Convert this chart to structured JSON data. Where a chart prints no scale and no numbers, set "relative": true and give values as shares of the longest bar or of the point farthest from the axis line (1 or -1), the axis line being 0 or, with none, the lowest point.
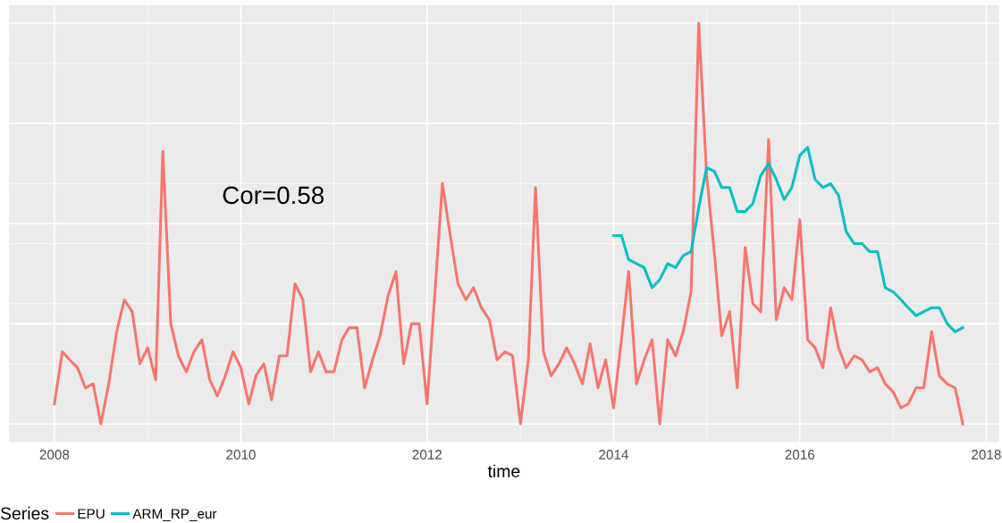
{
  "chart_data": {
    "type": "line",
    "relative": true,
    "xlabel": "time",
    "legend_title": "Series",
    "legend": "bottom",
    "grid": true,
    "annotations": [
      "Cor=0.58"
    ],
    "xlim": [
      "2007-07-07",
      "2018-02-20"
    ],
    "xticks": [
      "2008",
      "2010",
      "2012",
      "2014",
      "2016",
      "2018"
    ],
    "series": [
      {
        "name": "EPU",
        "color": "#f8766d",
        "x": [
          "2008-01",
          "2008-02",
          "2008-03",
          "2008-04",
          "2008-05",
          "2008-06",
          "2008-07",
          "2008-08",
          "2008-09",
          "2008-10",
          "2008-11",
          "2008-12",
          "2009-01",
          "2009-02",
          "2009-03",
          "2009-04",
          "2009-05",
          "2009-06",
          "2009-07",
          "2009-08",
          "2009-09",
          "2009-10",
          "2009-11",
          "2009-12",
          "2010-01",
          "2010-02",
          "2010-03",
          "2010-04",
          "2010-05",
          "2010-06",
          "2010-07",
          "2010-08",
          "2010-09",
          "2010-10",
          "2010-11",
          "2010-12",
          "2011-01",
          "2011-02",
          "2011-03",
          "2011-04",
          "2011-05",
          "2011-06",
          "2011-07",
          "2011-08",
          "2011-09",
          "2011-10",
          "2011-11",
          "2011-12",
          "2012-01",
          "2012-02",
          "2012-03",
          "2012-04",
          "2012-05",
          "2012-06",
          "2012-07",
          "2012-08",
          "2012-09",
          "2012-10",
          "2012-11",
          "2012-12",
          "2013-01",
          "2013-02",
          "2013-03",
          "2013-04",
          "2013-05",
          "2013-06",
          "2013-07",
          "2013-08",
          "2013-09",
          "2013-10",
          "2013-11",
          "2013-12",
          "2014-01",
          "2014-02",
          "2014-03",
          "2014-04",
          "2014-05",
          "2014-06",
          "2014-07",
          "2014-08",
          "2014-09",
          "2014-10",
          "2014-11",
          "2014-12",
          "2015-01",
          "2015-02",
          "2015-03",
          "2015-04",
          "2015-05",
          "2015-06",
          "2015-07",
          "2015-08",
          "2015-09",
          "2015-10",
          "2015-11",
          "2015-12",
          "2016-01",
          "2016-02",
          "2016-03",
          "2016-04",
          "2016-05",
          "2016-06",
          "2016-07",
          "2016-08",
          "2016-09",
          "2016-10",
          "2016-11",
          "2016-12",
          "2017-01",
          "2017-02",
          "2017-03",
          "2017-04",
          "2017-05",
          "2017-06",
          "2017-07",
          "2017-08",
          "2017-09",
          "2017-10"
        ],
        "values": [
          0.05,
          0.18,
          0.16,
          0.14,
          0.09,
          0.1,
          0,
          0.1,
          0.23,
          0.31,
          0.28,
          0.15,
          0.19,
          0.11,
          0.68,
          0.25,
          0.17,
          0.13,
          0.18,
          0.21,
          0.11,
          0.07,
          0.12,
          0.18,
          0.14,
          0.05,
          0.12,
          0.15,
          0.06,
          0.17,
          0.17,
          0.35,
          0.31,
          0.13,
          0.18,
          0.13,
          0.13,
          0.21,
          0.24,
          0.24,
          0.09,
          0.16,
          0.22,
          0.32,
          0.38,
          0.15,
          0.25,
          0.25,
          0.05,
          0.33,
          0.6,
          0.47,
          0.35,
          0.31,
          0.34,
          0.29,
          0.26,
          0.16,
          0.18,
          0.17,
          0,
          0.16,
          0.59,
          0.18,
          0.12,
          0.15,
          0.19,
          0.15,
          0.1,
          0.2,
          0.09,
          0.16,
          0.04,
          0.21,
          0.38,
          0.1,
          0.16,
          0.21,
          0,
          0.21,
          0.17,
          0.23,
          0.33,
          1,
          0.62,
          0.42,
          0.22,
          0.28,
          0.09,
          0.44,
          0.3,
          0.28,
          0.71,
          0.26,
          0.34,
          0.31,
          0.51,
          0.21,
          0.19,
          0.14,
          0.29,
          0.19,
          0.14,
          0.17,
          0.16,
          0.13,
          0.14,
          0.1,
          0.08,
          0.04,
          0.05,
          0.09,
          0.09,
          0.23,
          0.12,
          0.1,
          0.09,
          0
        ]
      },
      {
        "name": "ARM_RP_eur",
        "color": "#00bfc4",
        "x": [
          "2014-01",
          "2014-02",
          "2014-03",
          "2014-04",
          "2014-05",
          "2014-06",
          "2014-07",
          "2014-08",
          "2014-09",
          "2014-10",
          "2014-11",
          "2014-12",
          "2015-01",
          "2015-02",
          "2015-03",
          "2015-04",
          "2015-05",
          "2015-06",
          "2015-07",
          "2015-08",
          "2015-09",
          "2015-10",
          "2015-11",
          "2015-12",
          "2016-01",
          "2016-02",
          "2016-03",
          "2016-04",
          "2016-05",
          "2016-06",
          "2016-07",
          "2016-08",
          "2016-09",
          "2016-10",
          "2016-11",
          "2016-12",
          "2017-01",
          "2017-02",
          "2017-03",
          "2017-04",
          "2017-05",
          "2017-06",
          "2017-07",
          "2017-08",
          "2017-09",
          "2017-10"
        ],
        "values": [
          0.47,
          0.47,
          0.41,
          0.4,
          0.39,
          0.34,
          0.36,
          0.4,
          0.39,
          0.42,
          0.43,
          0.54,
          0.64,
          0.63,
          0.59,
          0.59,
          0.53,
          0.53,
          0.55,
          0.62,
          0.65,
          0.61,
          0.56,
          0.59,
          0.67,
          0.69,
          0.61,
          0.59,
          0.6,
          0.57,
          0.48,
          0.45,
          0.45,
          0.43,
          0.43,
          0.34,
          0.33,
          0.31,
          0.29,
          0.27,
          0.28,
          0.29,
          0.29,
          0.25,
          0.23,
          0.24
        ]
      }
    ]
  }
}
